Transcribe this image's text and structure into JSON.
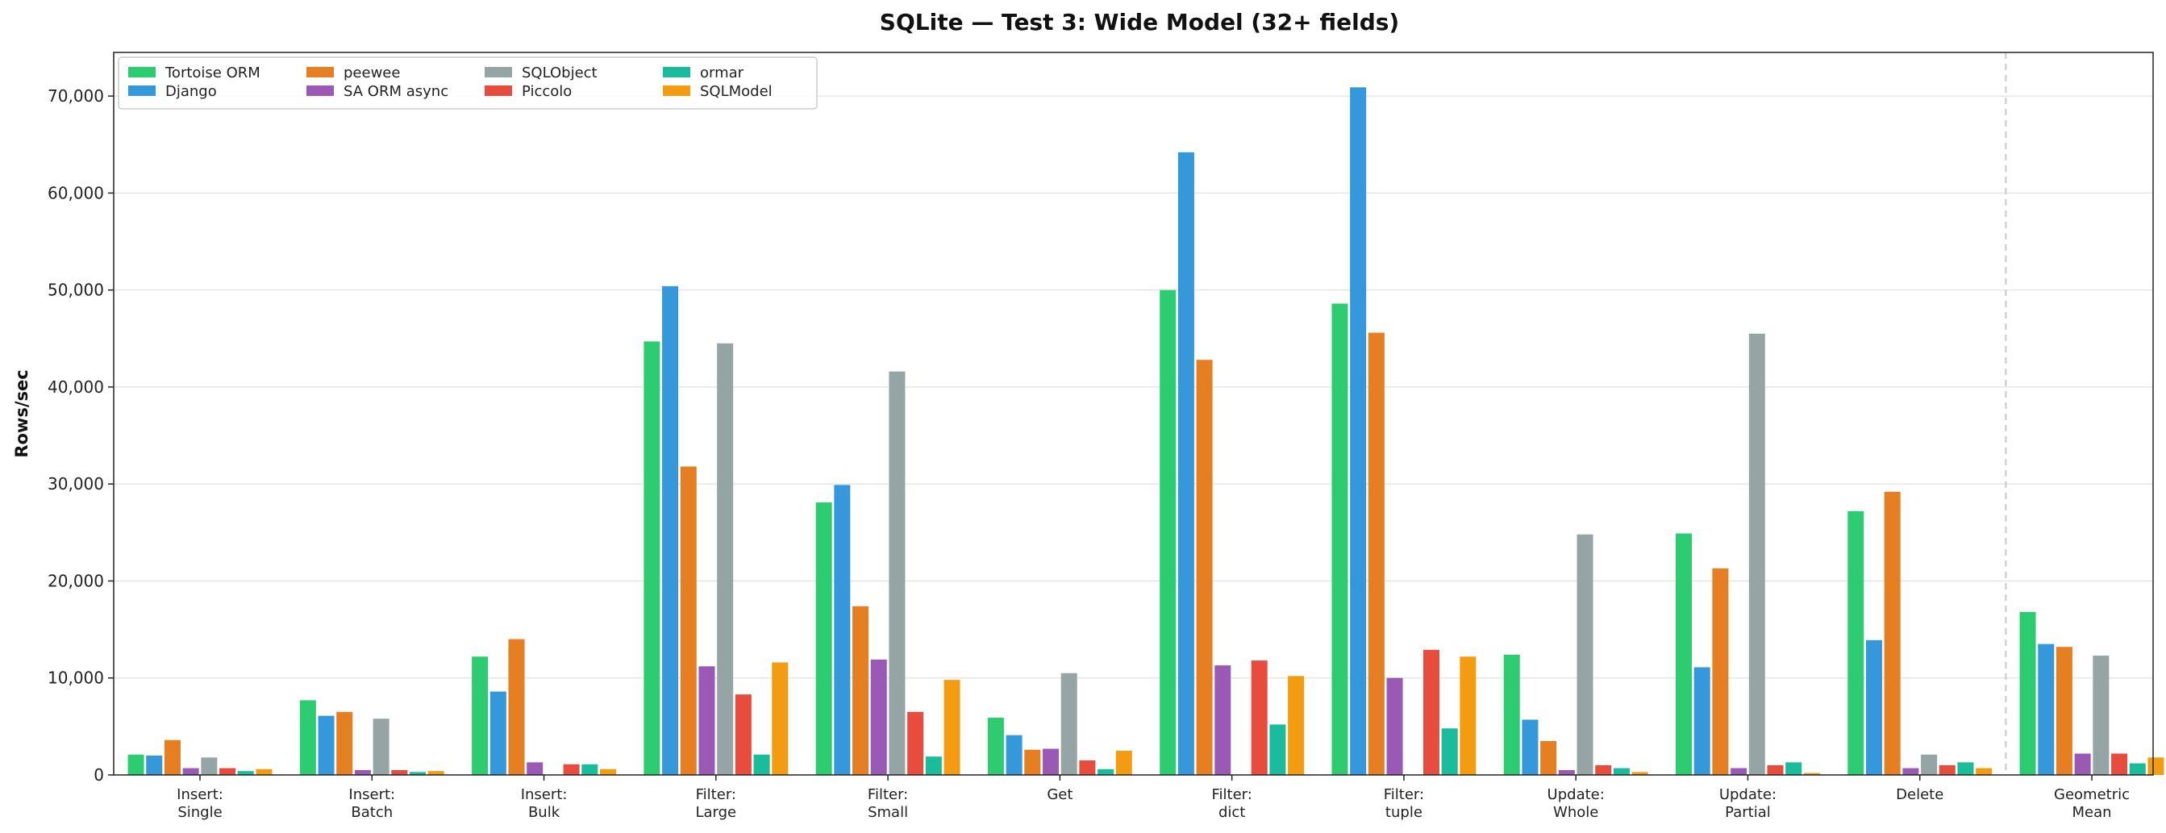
{
  "chart_data": {
    "type": "bar",
    "title": "SQLite — Test 3: Wide Model (32+ fields)",
    "xlabel": "",
    "ylabel": "Rows/sec",
    "ylim": [
      0,
      74500
    ],
    "yticks": [
      0,
      10000,
      20000,
      30000,
      40000,
      50000,
      60000,
      70000
    ],
    "ytick_labels": [
      "0",
      "10,000",
      "20,000",
      "30,000",
      "40,000",
      "50,000",
      "60,000",
      "70,000"
    ],
    "grid": "horizontal",
    "legend_placement": "top-left",
    "categories": [
      [
        "Insert:",
        "Single"
      ],
      [
        "Insert:",
        "Batch"
      ],
      [
        "Insert:",
        "Bulk"
      ],
      [
        "Filter:",
        "Large"
      ],
      [
        "Filter:",
        "Small"
      ],
      [
        "Get"
      ],
      [
        "Filter:",
        "dict"
      ],
      [
        "Filter:",
        "tuple"
      ],
      [
        "Update:",
        "Whole"
      ],
      [
        "Update:",
        "Partial"
      ],
      [
        "Delete"
      ],
      [
        "Geometric",
        "Mean"
      ]
    ],
    "separator_before_category": 11,
    "series": [
      {
        "name": "Tortoise ORM",
        "color": "#2ecc71",
        "values": [
          2100,
          7700,
          12200,
          44700,
          28100,
          5900,
          50000,
          48600,
          12400,
          24900,
          27200,
          16800
        ]
      },
      {
        "name": "Django",
        "color": "#3498db",
        "values": [
          2000,
          6100,
          8600,
          50400,
          29900,
          4100,
          64200,
          70900,
          5700,
          11100,
          13900,
          13500
        ]
      },
      {
        "name": "peewee",
        "color": "#e67e22",
        "values": [
          3600,
          6500,
          14000,
          31800,
          17400,
          2600,
          42800,
          45600,
          3500,
          21300,
          29200,
          13200
        ]
      },
      {
        "name": "SA ORM async",
        "color": "#9b59b6",
        "values": [
          700,
          500,
          1300,
          11200,
          11900,
          2700,
          11300,
          10000,
          500,
          700,
          700,
          2200
        ]
      },
      {
        "name": "SQLObject",
        "color": "#95a5a6",
        "values": [
          1800,
          5800,
          0,
          44500,
          41600,
          10500,
          0,
          0,
          24800,
          45500,
          2100,
          12300
        ]
      },
      {
        "name": "Piccolo",
        "color": "#e74c3c",
        "values": [
          700,
          500,
          1100,
          8300,
          6500,
          1500,
          11800,
          12900,
          1000,
          1000,
          1000,
          2200
        ]
      },
      {
        "name": "ormar",
        "color": "#1abc9c",
        "values": [
          400,
          300,
          1100,
          2100,
          1900,
          600,
          5200,
          4800,
          700,
          1300,
          1300,
          1200
        ]
      },
      {
        "name": "SQLModel",
        "color": "#f39c12",
        "values": [
          600,
          400,
          600,
          11600,
          9800,
          2500,
          10200,
          12200,
          300,
          200,
          700,
          1800
        ]
      }
    ]
  }
}
